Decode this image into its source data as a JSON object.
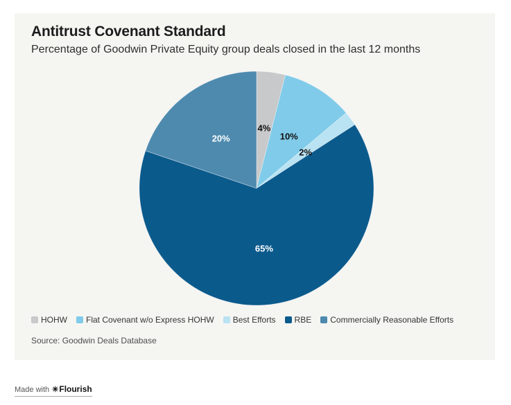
{
  "card": {
    "title": "Antitrust Covenant Standard",
    "subtitle": "Percentage of Goodwin Private Equity group deals closed in the last 12 months",
    "source": "Source: Goodwin Deals Database"
  },
  "chart_data": {
    "type": "pie",
    "title": "Antitrust Covenant Standard",
    "subtitle": "Percentage of Goodwin Private Equity group deals closed in the last 12 months",
    "start_angle_deg": 0,
    "direction": "clockwise",
    "legend_position": "bottom-left",
    "slices": [
      {
        "label": "HOHW",
        "value": 4,
        "display": "4%",
        "color": "#c8c9cb",
        "label_color": "#111111"
      },
      {
        "label": "Flat Covenant w/o Express HOHW",
        "value": 10,
        "display": "10%",
        "color": "#80cbe9",
        "label_color": "#111111"
      },
      {
        "label": "Best Efforts",
        "value": 2,
        "display": "2%",
        "color": "#b9e2f2",
        "label_color": "#111111"
      },
      {
        "label": "RBE",
        "value": 65,
        "display": "65%",
        "color": "#0b5a8c",
        "label_color": "#ffffff"
      },
      {
        "label": "Commercially Reasonable Efforts",
        "value": 20,
        "display": "20%",
        "color": "#4e8aae",
        "label_color": "#ffffff"
      }
    ]
  },
  "footer": {
    "made_with": "Made with",
    "brand_icon": "✳",
    "brand": "Flourish"
  }
}
